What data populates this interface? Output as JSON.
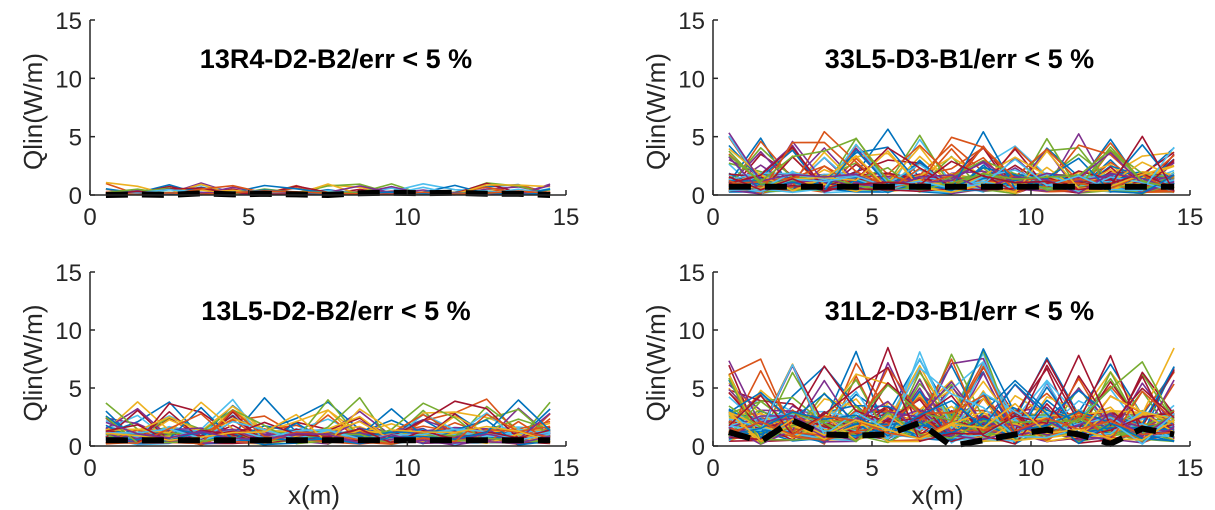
{
  "chart_data": [
    {
      "type": "line",
      "title": "13R4-D2-B2/err < 5 %",
      "ylabel": "Qlin(W/m)",
      "xlabel": "",
      "xlim": [
        0,
        15
      ],
      "ylim": [
        0,
        15
      ],
      "xticks": [
        0,
        5,
        10,
        15
      ],
      "yticks": [
        0,
        5,
        10,
        15
      ],
      "xtick_labels": [
        "0",
        "5",
        "10",
        "15"
      ],
      "ytick_labels": [
        "0",
        "5",
        "10",
        "15"
      ],
      "x": [
        0.5,
        1.5,
        2.5,
        3.5,
        4.5,
        5.5,
        6.5,
        7.5,
        8.5,
        9.5,
        10.5,
        11.5,
        12.5,
        13.5,
        14.5
      ],
      "series_count": 30,
      "series_baseline": 0.2,
      "series_max": 1.3,
      "mean": {
        "style": "black dashed",
        "values": [
          0.0,
          0.05,
          0.0,
          0.15,
          0.05,
          0.1,
          0.05,
          0.0,
          0.15,
          0.2,
          0.15,
          0.2,
          0.1,
          0.1,
          0.0
        ]
      }
    },
    {
      "type": "line",
      "title": "33L5-D3-B1/err < 5 %",
      "ylabel": "Qlin(W/m)",
      "xlabel": "",
      "xlim": [
        0,
        15
      ],
      "ylim": [
        0,
        15
      ],
      "xticks": [
        0,
        5,
        10,
        15
      ],
      "yticks": [
        0,
        5,
        10,
        15
      ],
      "xtick_labels": [
        "0",
        "5",
        "10",
        "15"
      ],
      "ytick_labels": [
        "0",
        "5",
        "10",
        "15"
      ],
      "x": [
        0.5,
        1.5,
        2.5,
        3.5,
        4.5,
        5.5,
        6.5,
        7.5,
        8.5,
        9.5,
        10.5,
        11.5,
        12.5,
        13.5,
        14.5
      ],
      "series_count": 70,
      "series_baseline": 1.5,
      "series_max": 6.2,
      "mean": {
        "style": "black dashed",
        "values": [
          0.7,
          0.7,
          0.7,
          0.7,
          0.7,
          0.7,
          0.7,
          0.7,
          0.7,
          0.7,
          0.7,
          0.7,
          0.7,
          0.7,
          0.7
        ]
      }
    },
    {
      "type": "line",
      "title": "13L5-D2-B2/err < 5 %",
      "ylabel": "Qlin(W/m)",
      "xlabel": "x(m)",
      "xlim": [
        0,
        15
      ],
      "ylim": [
        0,
        15
      ],
      "xticks": [
        0,
        5,
        10,
        15
      ],
      "yticks": [
        0,
        5,
        10,
        15
      ],
      "xtick_labels": [
        "0",
        "5",
        "10",
        "15"
      ],
      "ytick_labels": [
        "0",
        "5",
        "10",
        "15"
      ],
      "x": [
        0.5,
        1.5,
        2.5,
        3.5,
        4.5,
        5.5,
        6.5,
        7.5,
        8.5,
        9.5,
        10.5,
        11.5,
        12.5,
        13.5,
        14.5
      ],
      "series_count": 60,
      "series_baseline": 1.2,
      "series_max": 4.5,
      "mean": {
        "style": "black dashed",
        "values": [
          0.5,
          0.5,
          0.5,
          0.5,
          0.5,
          0.5,
          0.5,
          0.5,
          0.5,
          0.5,
          0.5,
          0.5,
          0.5,
          0.5,
          0.5
        ]
      }
    },
    {
      "type": "line",
      "title": "31L2-D3-B1/err < 5 %",
      "ylabel": "Qlin(W/m)",
      "xlabel": "x(m)",
      "xlim": [
        0,
        15
      ],
      "ylim": [
        0,
        15
      ],
      "xticks": [
        0,
        5,
        10,
        15
      ],
      "yticks": [
        0,
        5,
        10,
        15
      ],
      "xtick_labels": [
        "0",
        "5",
        "10",
        "15"
      ],
      "ytick_labels": [
        "0",
        "5",
        "10",
        "15"
      ],
      "x": [
        0.5,
        1.5,
        2.5,
        3.5,
        4.5,
        5.5,
        6.5,
        7.5,
        8.5,
        9.5,
        10.5,
        11.5,
        12.5,
        13.5,
        14.5
      ],
      "series_count": 80,
      "series_baseline": 2.5,
      "series_max": 9.5,
      "mean": {
        "style": "black dashed",
        "values": [
          1.2,
          0.4,
          2.2,
          1.0,
          0.9,
          1.0,
          2.0,
          0.0,
          0.5,
          1.0,
          1.4,
          1.0,
          0.2,
          1.5,
          1.0
        ]
      }
    }
  ],
  "colors": {
    "palette": [
      "#0072BD",
      "#D95319",
      "#EDB120",
      "#7E2F8E",
      "#77AC30",
      "#4DBEEE",
      "#A2142F"
    ],
    "mean_line": "#000000",
    "axis": "#262626"
  }
}
